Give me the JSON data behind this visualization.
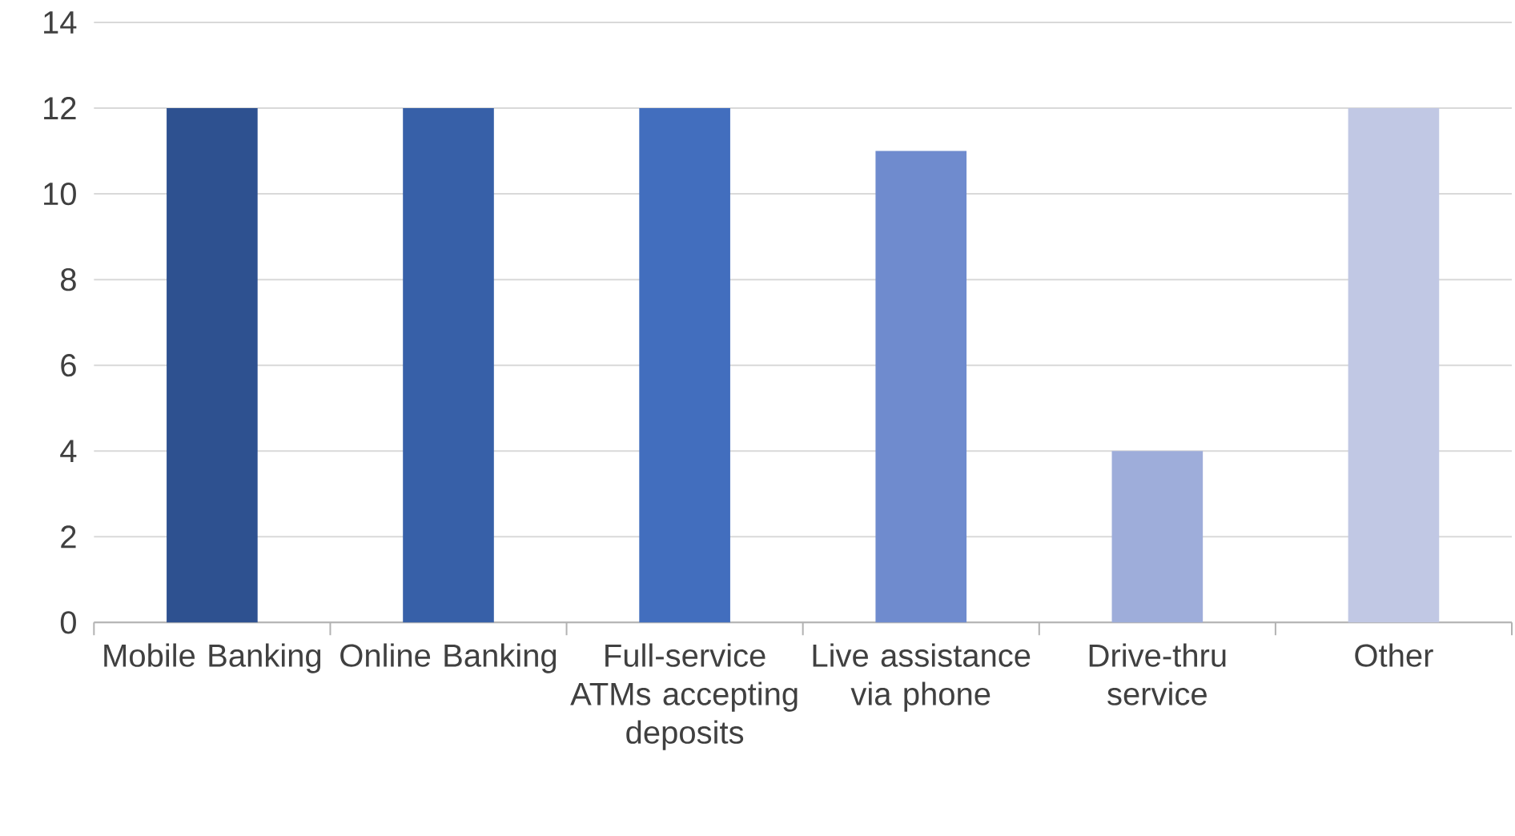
{
  "chart_data": {
    "type": "bar",
    "categories": [
      "Mobile Banking",
      "Online Banking",
      "Full-service ATMs accepting deposits",
      "Live assistance via phone",
      "Drive-thru service",
      "Other"
    ],
    "values": [
      12,
      12,
      12,
      11,
      4,
      12
    ],
    "colors": [
      "#2e5190",
      "#3760a8",
      "#426ebe",
      "#6f8bce",
      "#9eadda",
      "#c1c8e4"
    ],
    "ylim": [
      0,
      14
    ],
    "yticks": [
      0,
      2,
      4,
      6,
      8,
      10,
      12,
      14
    ],
    "grid": "y"
  }
}
